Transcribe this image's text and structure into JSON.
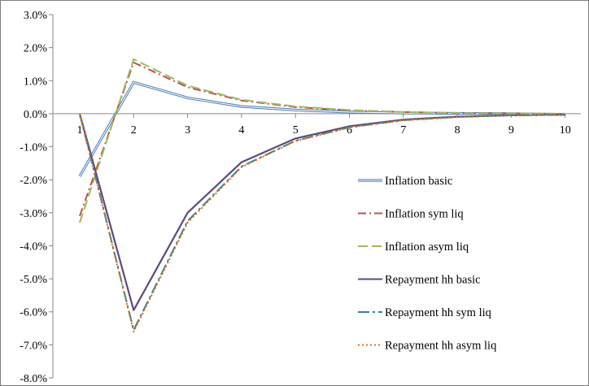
{
  "chart_data": {
    "type": "line",
    "title": "",
    "xlabel": "",
    "ylabel": "",
    "categories": [
      "1",
      "2",
      "3",
      "4",
      "5",
      "6",
      "7",
      "8",
      "9",
      "10"
    ],
    "ylim": [
      -8.0,
      3.0
    ],
    "yticks": [
      "3.0%",
      "2.0%",
      "1.0%",
      "0.0%",
      "-1.0%",
      "-2.0%",
      "-3.0%",
      "-4.0%",
      "-5.0%",
      "-6.0%",
      "-7.0%",
      "-8.0%"
    ],
    "grid": false,
    "legend_position": "right",
    "series": [
      {
        "name": "Inflation basic",
        "color": "#4f81bd",
        "style": "double",
        "values": [
          -1.9,
          0.95,
          0.48,
          0.22,
          0.11,
          0.05,
          0.02,
          0.01,
          0.0,
          -0.02
        ]
      },
      {
        "name": "Inflation sym liq",
        "color": "#c0504d",
        "style": "dashdot",
        "values": [
          -3.1,
          1.55,
          0.8,
          0.4,
          0.2,
          0.1,
          0.05,
          0.02,
          0.01,
          -0.01
        ]
      },
      {
        "name": "Inflation asym liq",
        "color": "#9bbb59",
        "style": "dash",
        "values": [
          -3.3,
          1.65,
          0.85,
          0.42,
          0.22,
          0.11,
          0.05,
          0.02,
          0.01,
          0.0
        ]
      },
      {
        "name": "Repayment hh basic",
        "color": "#604a7b",
        "style": "solid",
        "values": [
          0.0,
          -5.95,
          -3.0,
          -1.47,
          -0.75,
          -0.38,
          -0.18,
          -0.09,
          -0.05,
          -0.03
        ]
      },
      {
        "name": "Repayment hh sym liq",
        "color": "#31849b",
        "style": "longdashdot",
        "values": [
          0.0,
          -6.55,
          -3.25,
          -1.6,
          -0.82,
          -0.41,
          -0.2,
          -0.1,
          -0.05,
          -0.03
        ]
      },
      {
        "name": "Repayment hh asym liq",
        "color": "#e46c0a",
        "style": "dot",
        "values": [
          0.0,
          -6.6,
          -3.3,
          -1.62,
          -0.83,
          -0.42,
          -0.2,
          -0.1,
          -0.05,
          -0.03
        ]
      }
    ]
  }
}
